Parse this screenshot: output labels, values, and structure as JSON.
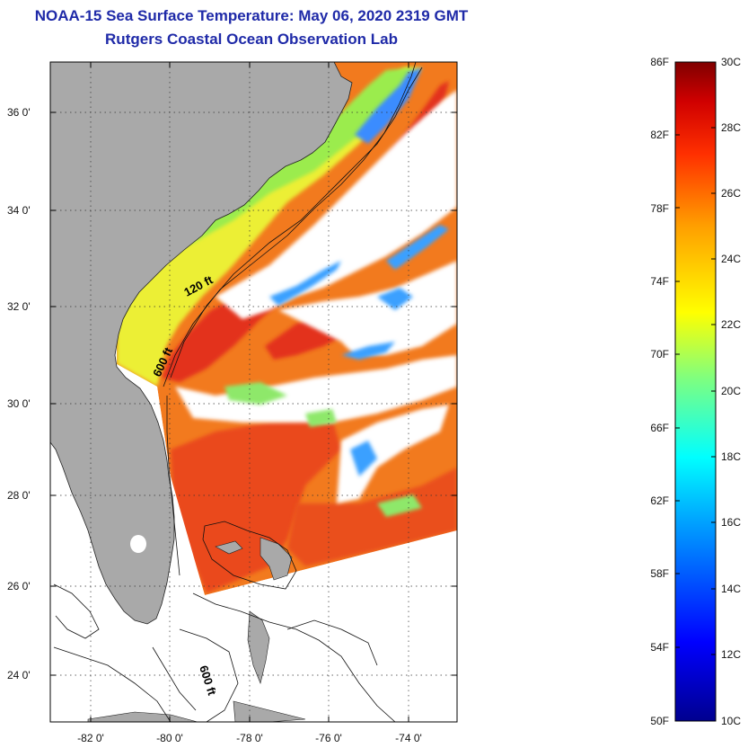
{
  "header": {
    "title": "NOAA-15 Sea Surface Temperature:  May 06, 2020 2319 GMT",
    "subtitle": "Rutgers Coastal Ocean Observation Lab"
  },
  "map": {
    "lat_ticks": [
      "36 0'",
      "34 0'",
      "32 0'",
      "30 0'",
      "28 0'",
      "26 0'",
      "24 0'"
    ],
    "lon_ticks": [
      "-82 0'",
      "-80 0'",
      "-78 0'",
      "-76 0'",
      "-74 0'"
    ],
    "contour_labels": [
      "120 ft",
      "600 ft",
      "600 ft"
    ],
    "colors": {
      "land": "#a9a9a9",
      "cloud_nodata": "#ffffff",
      "warm_core": "#e0301a",
      "gulf_stream": "#ee6a1c",
      "shelf": "#eef22c",
      "cool": "#58c8ff"
    }
  },
  "colorbar": {
    "fahrenheit_labels": [
      "86F",
      "82F",
      "78F",
      "74F",
      "70F",
      "66F",
      "62F",
      "58F",
      "54F",
      "50F"
    ],
    "celsius_labels": [
      "30C",
      "28C",
      "26C",
      "24C",
      "22C",
      "20C",
      "18C",
      "16C",
      "14C",
      "12C",
      "10C"
    ],
    "colormap": [
      "#00008f",
      "#0000ff",
      "#00a0ff",
      "#00ffff",
      "#7fff7f",
      "#ffff00",
      "#ffa000",
      "#ff3000",
      "#d00000",
      "#800000"
    ]
  }
}
